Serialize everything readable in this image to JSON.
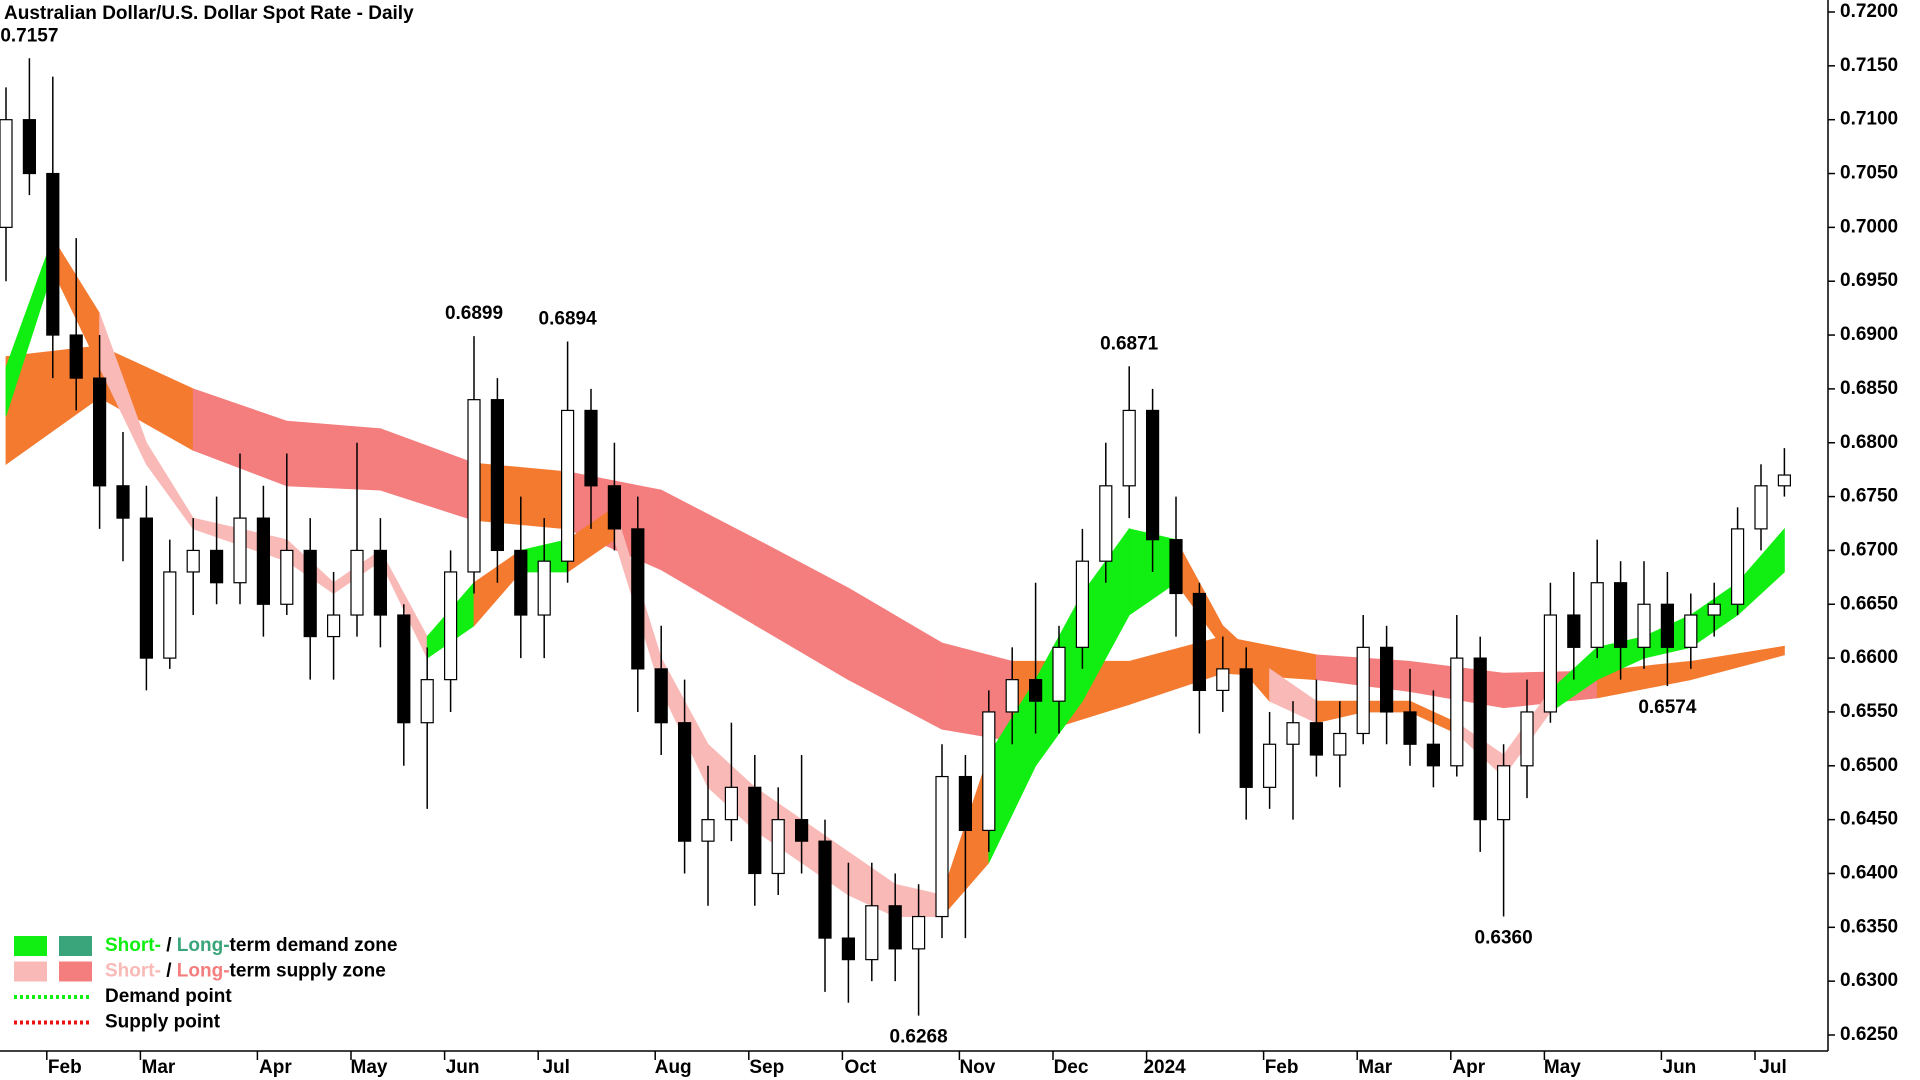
{
  "chart_data": {
    "type": "candlestick",
    "title": "Australian Dollar/U.S. Dollar Spot Rate - Daily",
    "categories": [
      null,
      null,
      "Feb",
      null,
      null,
      null,
      "Mar",
      null,
      null,
      null,
      null,
      "Apr",
      null,
      null,
      null,
      "May",
      null,
      null,
      null,
      "Jun",
      null,
      null,
      null,
      "Jul",
      null,
      null,
      null,
      null,
      "Aug",
      null,
      null,
      null,
      "Sep",
      null,
      null,
      null,
      "Oct",
      null,
      null,
      null,
      null,
      "Nov",
      null,
      null,
      null,
      "Dec",
      null,
      null,
      null,
      "2024",
      null,
      null,
      null,
      null,
      "Feb",
      null,
      null,
      null,
      "Mar",
      null,
      null,
      null,
      "Apr",
      null,
      null,
      null,
      "May",
      null,
      null,
      null,
      null,
      "Jun",
      null,
      null,
      null,
      "Jul",
      null
    ],
    "open": [
      0.7,
      0.71,
      0.705,
      0.69,
      0.686,
      0.676,
      0.673,
      0.66,
      0.668,
      0.67,
      0.667,
      0.673,
      0.665,
      0.67,
      0.662,
      0.664,
      0.67,
      0.664,
      0.654,
      0.658,
      0.668,
      0.684,
      0.67,
      0.664,
      0.669,
      0.683,
      0.676,
      0.672,
      0.659,
      0.654,
      0.643,
      0.645,
      0.648,
      0.64,
      0.645,
      0.643,
      0.634,
      0.632,
      0.637,
      0.633,
      0.636,
      0.649,
      0.644,
      0.655,
      0.658,
      0.656,
      0.661,
      0.669,
      0.676,
      0.683,
      0.671,
      0.666,
      0.657,
      0.659,
      0.648,
      0.652,
      0.654,
      0.651,
      0.653,
      0.661,
      0.655,
      0.652,
      0.65,
      0.66,
      0.645,
      0.65,
      0.655,
      0.664,
      0.661,
      0.667,
      0.661,
      0.665,
      0.661,
      0.664,
      0.665,
      0.672,
      0.676
    ],
    "high": [
      0.713,
      0.7157,
      0.714,
      0.699,
      0.69,
      0.681,
      0.676,
      0.671,
      0.673,
      0.675,
      0.679,
      0.676,
      0.679,
      0.673,
      0.668,
      0.68,
      0.673,
      0.665,
      0.661,
      0.67,
      0.6899,
      0.686,
      0.675,
      0.673,
      0.6894,
      0.685,
      0.68,
      0.675,
      0.663,
      0.658,
      0.65,
      0.654,
      0.651,
      0.648,
      0.651,
      0.645,
      0.641,
      0.641,
      0.64,
      0.639,
      0.652,
      0.651,
      0.657,
      0.661,
      0.667,
      0.663,
      0.672,
      0.68,
      0.6871,
      0.685,
      0.675,
      0.667,
      0.662,
      0.661,
      0.655,
      0.656,
      0.658,
      0.656,
      0.664,
      0.663,
      0.659,
      0.657,
      0.664,
      0.662,
      0.652,
      0.658,
      0.667,
      0.668,
      0.671,
      0.669,
      0.669,
      0.668,
      0.666,
      0.667,
      0.674,
      0.678,
      0.6795
    ],
    "low": [
      0.695,
      0.703,
      0.686,
      0.683,
      0.672,
      0.669,
      0.657,
      0.659,
      0.664,
      0.665,
      0.665,
      0.662,
      0.664,
      0.658,
      0.658,
      0.662,
      0.661,
      0.65,
      0.646,
      0.655,
      0.666,
      0.667,
      0.66,
      0.66,
      0.667,
      0.672,
      0.67,
      0.655,
      0.651,
      0.64,
      0.637,
      0.643,
      0.637,
      0.638,
      0.64,
      0.629,
      0.628,
      0.63,
      0.63,
      0.6268,
      0.634,
      0.634,
      0.642,
      0.652,
      0.653,
      0.653,
      0.659,
      0.667,
      0.673,
      0.668,
      0.662,
      0.653,
      0.655,
      0.645,
      0.646,
      0.645,
      0.649,
      0.648,
      0.652,
      0.652,
      0.65,
      0.648,
      0.649,
      0.642,
      0.636,
      0.647,
      0.654,
      0.658,
      0.66,
      0.658,
      0.659,
      0.6574,
      0.659,
      0.662,
      0.664,
      0.67,
      0.675
    ],
    "close": [
      0.71,
      0.705,
      0.69,
      0.686,
      0.676,
      0.673,
      0.66,
      0.668,
      0.67,
      0.667,
      0.673,
      0.665,
      0.67,
      0.662,
      0.664,
      0.67,
      0.664,
      0.654,
      0.658,
      0.668,
      0.684,
      0.67,
      0.664,
      0.669,
      0.683,
      0.676,
      0.672,
      0.659,
      0.654,
      0.643,
      0.645,
      0.648,
      0.64,
      0.645,
      0.643,
      0.634,
      0.632,
      0.637,
      0.633,
      0.636,
      0.649,
      0.644,
      0.655,
      0.658,
      0.656,
      0.661,
      0.669,
      0.676,
      0.683,
      0.671,
      0.666,
      0.657,
      0.659,
      0.648,
      0.652,
      0.654,
      0.651,
      0.653,
      0.661,
      0.655,
      0.652,
      0.65,
      0.66,
      0.645,
      0.65,
      0.655,
      0.664,
      0.661,
      0.667,
      0.661,
      0.665,
      0.661,
      0.664,
      0.665,
      0.672,
      0.676,
      0.677
    ],
    "up_color": "#ffffff",
    "down_color": "#000000",
    "bands": [
      {
        "x": [
          0,
          4,
          8,
          12,
          16,
          20,
          24,
          28,
          32,
          36,
          40,
          43,
          48,
          52,
          56,
          60,
          64,
          68,
          72,
          76
        ],
        "upper": [
          0.688,
          0.689,
          0.685,
          0.682,
          0.6813,
          0.6781,
          0.6773,
          0.6756,
          0.6711,
          0.6665,
          0.6614,
          0.6597,
          0.6597,
          0.662,
          0.6603,
          0.6597,
          0.6586,
          0.6588,
          0.6597,
          0.6611
        ],
        "lower": [
          0.678,
          0.6842,
          0.6793,
          0.676,
          0.6756,
          0.6728,
          0.672,
          0.6682,
          0.6631,
          0.658,
          0.6534,
          0.6523,
          0.6557,
          0.6586,
          0.658,
          0.6569,
          0.6554,
          0.6563,
          0.658,
          0.6603
        ],
        "colors": [
          "#f47a30",
          "#f47a30",
          "#f47d7d",
          "#f47d7d",
          "#f47d7d",
          "#f47a30",
          "#f47d7d",
          "#f47d7d",
          "#f47d7d",
          "#f47d7d",
          "#f47d7d",
          "#f47a30",
          "#f47a30",
          "#f47a30",
          "#f47d7d",
          "#f47d7d",
          "#f47d7d",
          "#f47a30",
          "#f47a30"
        ]
      },
      {
        "x": [
          0,
          2,
          4,
          6,
          8,
          12,
          14,
          16,
          18,
          20,
          22,
          24,
          26,
          28,
          30,
          32,
          34,
          36,
          38,
          40,
          42,
          44,
          46,
          48,
          50,
          52,
          54,
          56,
          58,
          60,
          62,
          64,
          66,
          68,
          70,
          72,
          74,
          76
        ],
        "upper": [
          0.687,
          0.699,
          0.692,
          0.68,
          0.673,
          0.671,
          0.667,
          0.67,
          0.662,
          0.667,
          0.67,
          0.671,
          0.674,
          0.66,
          0.652,
          0.648,
          0.645,
          0.642,
          0.639,
          0.638,
          0.651,
          0.658,
          0.666,
          0.672,
          0.671,
          0.663,
          0.659,
          0.656,
          0.656,
          0.656,
          0.654,
          0.651,
          0.657,
          0.661,
          0.662,
          0.664,
          0.667,
          0.672
        ],
        "lower": [
          0.6825,
          0.696,
          0.687,
          0.678,
          0.672,
          0.669,
          0.666,
          0.669,
          0.66,
          0.663,
          0.668,
          0.668,
          0.671,
          0.657,
          0.648,
          0.644,
          0.641,
          0.638,
          0.636,
          0.636,
          0.641,
          0.65,
          0.656,
          0.664,
          0.667,
          0.661,
          0.656,
          0.654,
          0.655,
          0.655,
          0.653,
          0.649,
          0.655,
          0.658,
          0.66,
          0.661,
          0.664,
          0.668
        ],
        "colors": [
          "#11ee11",
          "#f47a30",
          "#f9b9b6",
          "#f9b9b6",
          "#f9b9b6",
          "#f9b9b6",
          "#f9b9b6",
          "#f9b9b6",
          "#11ee11",
          "#f47a30",
          "#11ee11",
          "#f47a30",
          "#f9b9b6",
          "#f9b9b6",
          "#f9b9b6",
          "#f9b9b6",
          "#f9b9b6",
          "#f9b9b6",
          "#f9b9b6",
          "#f47a30",
          "#11ee11",
          "#11ee11",
          "#11ee11",
          "#11ee11",
          "#f47a30",
          "#f47a30",
          "#f9b9b6",
          "#f47a30",
          "#f47a30",
          "#f47a30",
          "#f9b9b6",
          "#f9b9b6",
          "#11ee11",
          "#11ee11",
          "#11ee11",
          "#11ee11",
          "#11ee11"
        ]
      }
    ],
    "annotations": [
      0.7157,
      0.6899,
      0.6894,
      0.6871,
      0.6268,
      {
        "value": 0.636,
        "label": "0.6360"
      },
      0.6574
    ],
    "ylim": [
      0.625,
      0.72
    ],
    "yticks": [
      {
        "value": 0.625,
        "label": "0.6250"
      },
      {
        "value": 0.63,
        "label": "0.6300"
      },
      {
        "value": 0.635,
        "label": "0.6350"
      },
      {
        "value": 0.64,
        "label": "0.6400"
      },
      {
        "value": 0.645,
        "label": "0.6450"
      },
      {
        "value": 0.65,
        "label": "0.6500"
      },
      {
        "value": 0.655,
        "label": "0.6550"
      },
      {
        "value": 0.66,
        "label": "0.6600"
      },
      {
        "value": 0.665,
        "label": "0.6650"
      },
      {
        "value": 0.67,
        "label": "0.6700"
      },
      {
        "value": 0.675,
        "label": "0.6750"
      },
      {
        "value": 0.68,
        "label": "0.6800"
      },
      {
        "value": 0.685,
        "label": "0.6850"
      },
      {
        "value": 0.69,
        "label": "0.6900"
      },
      {
        "value": 0.695,
        "label": "0.6950"
      },
      {
        "value": 0.7,
        "label": "0.7000"
      },
      {
        "value": 0.705,
        "label": "0.7050"
      },
      {
        "value": 0.71,
        "label": "0.7100"
      },
      {
        "value": 0.715,
        "label": "0.7150"
      },
      {
        "value": 0.72,
        "label": "0.7200"
      }
    ],
    "legend": [
      {
        "swatches": [
          "#11ee11",
          "#3aa57a"
        ],
        "parts": [
          {
            "text": "Short-",
            "color": "#11ee11"
          },
          {
            "text": " / ",
            "color": "#000000"
          },
          {
            "text": "Long-",
            "color": "#3aa57a"
          },
          {
            "text": "term demand zone",
            "color": "#000000"
          }
        ]
      },
      {
        "swatches": [
          "#f9b9b6",
          "#f47d7d"
        ],
        "parts": [
          {
            "text": "Short-",
            "color": "#f9b9b6"
          },
          {
            "text": " / ",
            "color": "#000000"
          },
          {
            "text": "Long-",
            "color": "#f47d7d"
          },
          {
            "text": "term supply zone",
            "color": "#000000"
          }
        ]
      },
      {
        "line": "#11ee11",
        "parts": [
          {
            "text": "Demand point",
            "color": "#000000"
          }
        ]
      },
      {
        "line": "#ee1111",
        "parts": [
          {
            "text": "Supply point",
            "color": "#000000"
          }
        ]
      }
    ]
  }
}
